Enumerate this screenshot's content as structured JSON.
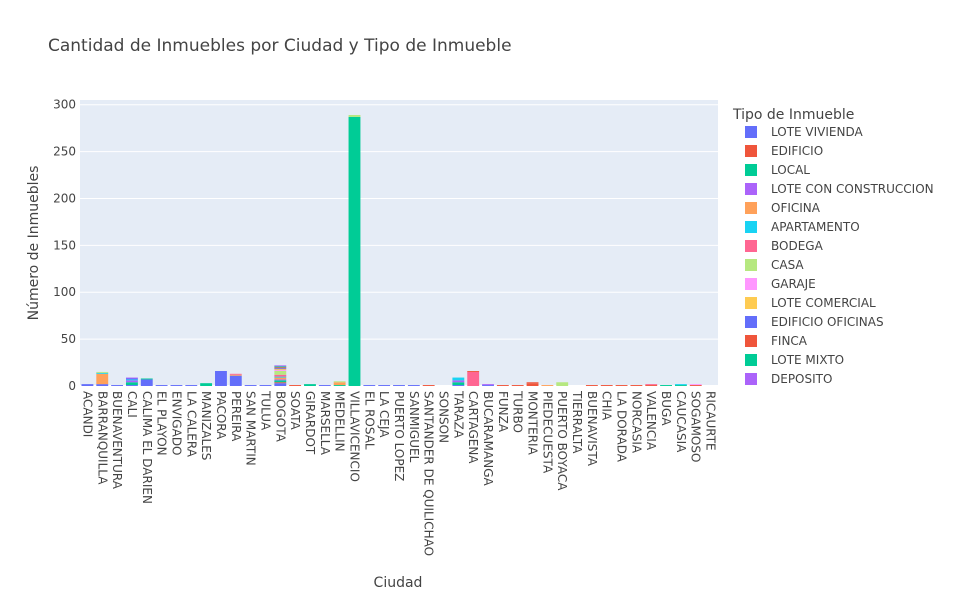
{
  "chart_data": {
    "type": "bar",
    "barmode": "stack",
    "title": "Cantidad de Inmuebles por Ciudad y Tipo de Inmueble",
    "xlabel": "Ciudad",
    "ylabel": "Número de Inmuebles",
    "ylim": [
      0,
      305
    ],
    "yticks": [
      0,
      50,
      100,
      150,
      200,
      250,
      300
    ],
    "grid": true,
    "legend_title": "Tipo de Inmueble",
    "legend_position": "right",
    "categories": [
      "ACANDI",
      "BARRANQUILLA",
      "BUENAVENTURA",
      "CALI",
      "CALIMA EL DARIEN",
      "EL PLAYON",
      "ENVIGADO",
      "LA CALERA",
      "MANIZALES",
      "PACORA",
      "PEREIRA",
      "SAN MARTIN",
      "TULUA",
      "BOGOTA",
      "SOATA",
      "GIRARDOT",
      "MARSELLA",
      "MEDELLIN",
      "VILLAVICENCIO",
      "EL ROSAL",
      "LA CEJA",
      "PUERTO LOPEZ",
      "SANMIGUEL",
      "SANTANDER DE QUILICHAO",
      "SONSON",
      "TARAZA",
      "CARTAGENA",
      "BUCARAMANGA",
      "FUNZA",
      "TURBO",
      "MONTERIA",
      "PIEDECUESTA",
      "PUERTO BOYACA",
      "TIERRALTA",
      "BUENAVISTA",
      "CHIA",
      "LA DORADA",
      "NORCASIA",
      "VALENCIA",
      "BUGA",
      "CAUCASIA",
      "SOGAMOSO",
      "RICAURTE"
    ],
    "series": [
      {
        "name": "LOTE VIVIENDA",
        "color": "#636efa",
        "values": [
          2,
          2,
          1,
          1,
          7,
          1,
          1,
          1,
          0,
          16,
          11,
          1,
          1,
          3,
          0,
          0,
          1,
          0,
          0,
          1,
          1,
          1,
          1,
          0,
          0,
          1,
          0,
          1,
          0,
          0,
          0,
          0,
          0,
          0,
          0,
          0,
          0,
          0,
          0,
          0,
          0,
          0,
          0
        ]
      },
      {
        "name": "EDIFICIO",
        "color": "#EF553B",
        "values": [
          0,
          0,
          0,
          0,
          0,
          0,
          0,
          0,
          0,
          0,
          0,
          0,
          0,
          1,
          1,
          0,
          0,
          0,
          0,
          0,
          0,
          0,
          0,
          1,
          0,
          0,
          0,
          0,
          1,
          1,
          3,
          0,
          0,
          0,
          1,
          1,
          1,
          1,
          1,
          0,
          0,
          1,
          0
        ]
      },
      {
        "name": "LOCAL",
        "color": "#00cc96",
        "values": [
          0,
          0,
          0,
          3,
          0,
          0,
          0,
          0,
          3,
          0,
          0,
          0,
          0,
          2,
          0,
          2,
          0,
          1,
          287,
          0,
          0,
          0,
          0,
          0,
          0,
          3,
          0,
          0,
          0,
          0,
          0,
          0,
          0,
          0,
          0,
          0,
          0,
          0,
          0,
          1,
          1,
          0,
          0
        ]
      },
      {
        "name": "LOTE CON CONSTRUCCION",
        "color": "#ab63fa",
        "values": [
          0,
          0,
          0,
          2,
          0,
          0,
          0,
          0,
          0,
          0,
          0,
          0,
          0,
          1,
          0,
          0,
          0,
          0,
          0,
          0,
          0,
          0,
          0,
          0,
          0,
          2,
          0,
          1,
          0,
          0,
          0,
          0,
          0,
          0,
          0,
          0,
          0,
          0,
          0,
          0,
          0,
          0,
          0
        ]
      },
      {
        "name": "OFICINA",
        "color": "#FFA15A",
        "values": [
          0,
          11,
          0,
          0,
          0,
          0,
          0,
          0,
          0,
          0,
          1,
          0,
          0,
          2,
          0,
          0,
          0,
          3,
          0,
          0,
          0,
          0,
          0,
          0,
          0,
          0,
          0,
          0,
          0,
          0,
          0,
          1,
          0,
          0,
          0,
          0,
          0,
          0,
          0,
          0,
          0,
          0,
          0
        ]
      },
      {
        "name": "APARTAMENTO",
        "color": "#19d3f3",
        "values": [
          0,
          1,
          0,
          1,
          0,
          0,
          0,
          0,
          0,
          0,
          0,
          0,
          0,
          1,
          0,
          0,
          0,
          0,
          0,
          0,
          0,
          0,
          0,
          0,
          0,
          3,
          0,
          0,
          0,
          0,
          0,
          0,
          0,
          0,
          0,
          0,
          0,
          0,
          0,
          0,
          1,
          0,
          0
        ]
      },
      {
        "name": "BODEGA",
        "color": "#FF6692",
        "values": [
          0,
          0,
          0,
          0,
          0,
          0,
          0,
          0,
          0,
          0,
          1,
          0,
          0,
          2,
          0,
          0,
          0,
          0,
          0,
          0,
          0,
          0,
          0,
          0,
          0,
          0,
          15,
          0,
          0,
          0,
          0,
          0,
          0,
          0,
          0,
          0,
          0,
          0,
          1,
          0,
          0,
          0,
          0
        ]
      },
      {
        "name": "CASA",
        "color": "#B6E880",
        "values": [
          0,
          1,
          0,
          0,
          0,
          0,
          0,
          0,
          0,
          0,
          0,
          0,
          0,
          4,
          0,
          0,
          0,
          1,
          2,
          0,
          0,
          0,
          0,
          0,
          0,
          0,
          0,
          0,
          0,
          0,
          0,
          0,
          4,
          0,
          0,
          0,
          0,
          0,
          0,
          0,
          0,
          0,
          0
        ]
      },
      {
        "name": "GARAJE",
        "color": "#FF97FF",
        "values": [
          0,
          0,
          0,
          0,
          0,
          0,
          0,
          0,
          0,
          0,
          0,
          0,
          0,
          1,
          0,
          0,
          0,
          0,
          0,
          0,
          0,
          0,
          0,
          0,
          0,
          0,
          0,
          0,
          0,
          0,
          0,
          0,
          0,
          0,
          0,
          0,
          0,
          0,
          0,
          0,
          0,
          1,
          0
        ]
      },
      {
        "name": "LOTE COMERCIAL",
        "color": "#FECB52",
        "values": [
          0,
          0,
          0,
          0,
          0,
          0,
          0,
          0,
          0,
          0,
          0,
          0,
          0,
          1,
          0,
          0,
          0,
          0,
          0,
          0,
          0,
          0,
          0,
          0,
          0,
          0,
          0,
          0,
          0,
          0,
          0,
          0,
          0,
          0,
          0,
          0,
          0,
          0,
          0,
          0,
          0,
          0,
          0
        ]
      },
      {
        "name": "EDIFICIO OFICINAS",
        "color": "#636efa",
        "values": [
          0,
          0,
          0,
          1,
          0,
          0,
          0,
          0,
          0,
          0,
          0,
          0,
          0,
          1,
          0,
          0,
          0,
          0,
          0,
          0,
          0,
          0,
          0,
          0,
          0,
          0,
          0,
          0,
          0,
          0,
          0,
          0,
          0,
          0,
          0,
          0,
          0,
          0,
          0,
          0,
          0,
          0,
          0
        ]
      },
      {
        "name": "FINCA",
        "color": "#EF553B",
        "values": [
          0,
          0,
          0,
          0,
          0,
          0,
          0,
          0,
          0,
          0,
          0,
          0,
          0,
          1,
          0,
          0,
          0,
          0,
          0,
          0,
          0,
          0,
          0,
          0,
          0,
          0,
          1,
          0,
          0,
          0,
          1,
          0,
          0,
          0,
          0,
          0,
          0,
          0,
          0,
          0,
          0,
          0,
          0
        ]
      },
      {
        "name": "LOTE MIXTO",
        "color": "#00cc96",
        "values": [
          0,
          0,
          0,
          0,
          1,
          0,
          0,
          0,
          0,
          0,
          0,
          0,
          0,
          1,
          0,
          0,
          0,
          0,
          0,
          0,
          0,
          0,
          0,
          0,
          0,
          0,
          0,
          0,
          0,
          0,
          0,
          0,
          0,
          0,
          0,
          0,
          0,
          0,
          0,
          0,
          0,
          0,
          0
        ]
      },
      {
        "name": "DEPOSITO",
        "color": "#ab63fa",
        "values": [
          0,
          0,
          0,
          1,
          0,
          0,
          0,
          0,
          0,
          0,
          0,
          0,
          0,
          1,
          0,
          0,
          0,
          0,
          0,
          0,
          0,
          0,
          0,
          0,
          0,
          0,
          0,
          0,
          0,
          0,
          0,
          0,
          0,
          0,
          0,
          0,
          0,
          0,
          0,
          0,
          0,
          0,
          0
        ]
      }
    ]
  }
}
